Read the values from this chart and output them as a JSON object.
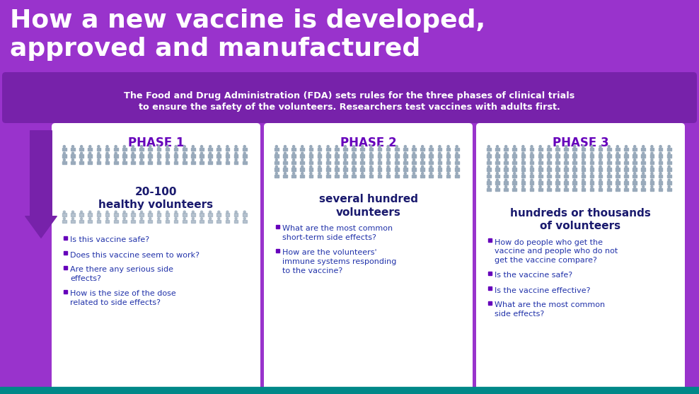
{
  "title_line1": "How a new vaccine is developed,",
  "title_line2": "approved and manufactured",
  "subtitle_line1": "The Food and Drug Administration (FDA) sets rules for the three phases of clinical trials",
  "subtitle_line2": "to ensure the safety of the volunteers. Researchers test vaccines with adults first.",
  "bg_color": "#9933cc",
  "subtitle_bg": "#7722aa",
  "card_bg": "#ffffff",
  "phase_title_color": "#6600bb",
  "volunteer_text_color": "#1a1a6e",
  "bullet_text_color": "#2233aa",
  "bullet_dot_color": "#6600bb",
  "icon_color": "#99aabb",
  "teal_bar_color": "#008888",
  "arrow_color": "#7722aa",
  "phases": [
    "PHASE 1",
    "PHASE 2",
    "PHASE 3"
  ],
  "volunteer_counts": [
    "20-100\nhealthy volunteers",
    "several hundred\nvolunteers",
    "hundreds or thousands\nof volunteers"
  ],
  "icon_rows_p1": 3,
  "icon_rows_p2": 5,
  "icon_rows_p3": 7,
  "extra_rows_p1": 2,
  "phase1_bullets": [
    "Is this vaccine safe?",
    "Does this vaccine seem to work?",
    "Are there any serious side\neffects?",
    "How is the size of the dose\nrelated to side effects?"
  ],
  "phase2_bullets": [
    "What are the most common\nshort-term side effects?",
    "How are the volunteers'\nimmune systems responding\nto the vaccine?"
  ],
  "phase3_bullets": [
    "How do people who get the\nvaccine and people who do not\nget the vaccine compare?",
    "Is the vaccine safe?",
    "Is the vaccine effective?",
    "What are the most common\nside effects?"
  ]
}
